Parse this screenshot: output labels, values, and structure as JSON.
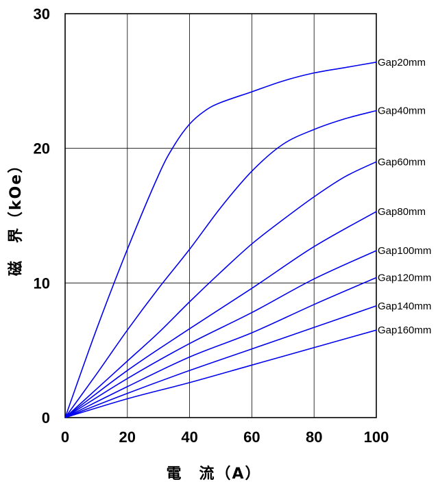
{
  "chart_data": {
    "type": "line",
    "xlabel": "電　流（A）",
    "ylabel": "磁　界（kOe）",
    "xlim": [
      0,
      100
    ],
    "ylim": [
      0,
      30
    ],
    "x_ticks": [
      0,
      20,
      40,
      60,
      80,
      100
    ],
    "y_ticks": [
      0,
      10,
      20,
      30
    ],
    "grid": true,
    "legend": "end-of-line labels",
    "line_color": "#0000ee",
    "series": [
      {
        "name": "Gap20mm",
        "x": [
          0,
          10,
          20,
          30,
          35,
          40,
          45,
          50,
          60,
          70,
          80,
          90,
          100
        ],
        "y": [
          0,
          6.5,
          12.5,
          18,
          20.2,
          21.8,
          22.8,
          23.4,
          24.2,
          25,
          25.6,
          26,
          26.4
        ]
      },
      {
        "name": "Gap40mm",
        "x": [
          0,
          10,
          20,
          30,
          40,
          50,
          60,
          70,
          80,
          90,
          100
        ],
        "y": [
          0,
          3.2,
          6.5,
          9.6,
          12.5,
          15.6,
          18.3,
          20.3,
          21.4,
          22.2,
          22.8
        ]
      },
      {
        "name": "Gap60mm",
        "x": [
          0,
          10,
          20,
          30,
          40,
          50,
          60,
          70,
          80,
          90,
          100
        ],
        "y": [
          0,
          2.1,
          4.2,
          6.3,
          8.6,
          10.8,
          12.9,
          14.7,
          16.4,
          17.9,
          19
        ]
      },
      {
        "name": "Gap80mm",
        "x": [
          0,
          20,
          40,
          60,
          80,
          100
        ],
        "y": [
          0,
          3.5,
          6.6,
          9.6,
          12.7,
          15.3
        ]
      },
      {
        "name": "Gap100mm",
        "x": [
          0,
          20,
          40,
          60,
          80,
          100
        ],
        "y": [
          0,
          2.9,
          5.5,
          7.8,
          10.3,
          12.4
        ]
      },
      {
        "name": "Gap120mm",
        "x": [
          0,
          20,
          40,
          60,
          80,
          100
        ],
        "y": [
          0,
          2.3,
          4.5,
          6.3,
          8.4,
          10.4
        ]
      },
      {
        "name": "Gap140mm",
        "x": [
          0,
          20,
          40,
          60,
          80,
          100
        ],
        "y": [
          0,
          1.8,
          3.5,
          5.1,
          6.7,
          8.3
        ]
      },
      {
        "name": "Gap160mm",
        "x": [
          0,
          20,
          40,
          60,
          80,
          100
        ],
        "y": [
          0,
          1.4,
          2.6,
          3.9,
          5.2,
          6.5
        ]
      }
    ]
  }
}
